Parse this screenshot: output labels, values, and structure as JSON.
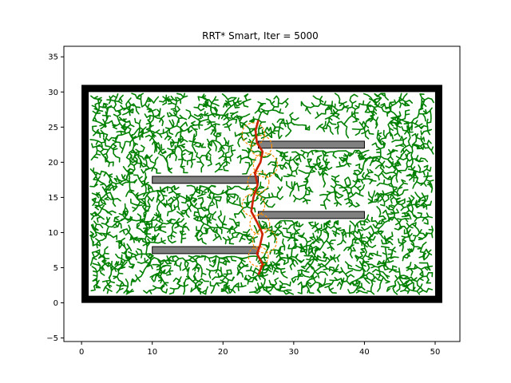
{
  "chart_data": {
    "type": "scatter",
    "title": "RRT* Smart, Iter = 5000",
    "xlabel": "",
    "ylabel": "",
    "xlim": [
      -2.5,
      53.5
    ],
    "ylim": [
      -5.5,
      36.5
    ],
    "xticks": [
      0,
      10,
      20,
      30,
      40,
      50
    ],
    "yticks": [
      -5,
      0,
      5,
      10,
      15,
      20,
      25,
      30,
      35
    ],
    "grid": false,
    "colors": {
      "tree": "#008000",
      "path": "#cc2200",
      "beacon": "#ff8c00",
      "boundary": "#000000",
      "obstacle_fill": "#808080",
      "obstacle_edge": "#000000"
    },
    "boundary": {
      "x0": 0.5,
      "y0": 0.5,
      "x1": 50.5,
      "y1": 30.5
    },
    "obstacles": [
      {
        "x": 10,
        "y": 17,
        "w": 15,
        "h": 1
      },
      {
        "x": 25,
        "y": 22,
        "w": 15,
        "h": 1
      },
      {
        "x": 25,
        "y": 12,
        "w": 15,
        "h": 1
      },
      {
        "x": 10,
        "y": 7,
        "w": 15,
        "h": 1
      }
    ],
    "start": [
      25,
      4
    ],
    "goal": [
      25,
      26
    ],
    "path": [
      [
        25.0,
        26.0
      ],
      [
        24.6,
        24.5
      ],
      [
        24.8,
        22.8
      ],
      [
        25.6,
        21.5
      ],
      [
        25.3,
        20.0
      ],
      [
        24.5,
        18.5
      ],
      [
        24.9,
        16.8
      ],
      [
        24.3,
        15.0
      ],
      [
        24.0,
        13.0
      ],
      [
        24.8,
        11.5
      ],
      [
        25.6,
        9.8
      ],
      [
        25.2,
        8.0
      ],
      [
        24.8,
        7.0
      ],
      [
        25.6,
        5.5
      ],
      [
        25.0,
        4.0
      ]
    ],
    "beacons": [
      [
        24.3,
        24.0,
        1.6
      ],
      [
        25.4,
        22.3,
        1.5
      ],
      [
        26.0,
        19.6,
        1.7
      ],
      [
        25.0,
        17.2,
        1.5
      ],
      [
        24.3,
        13.9,
        1.6
      ],
      [
        25.2,
        11.2,
        1.4
      ],
      [
        25.9,
        8.8,
        1.7
      ],
      [
        25.0,
        6.6,
        1.4
      ]
    ]
  }
}
